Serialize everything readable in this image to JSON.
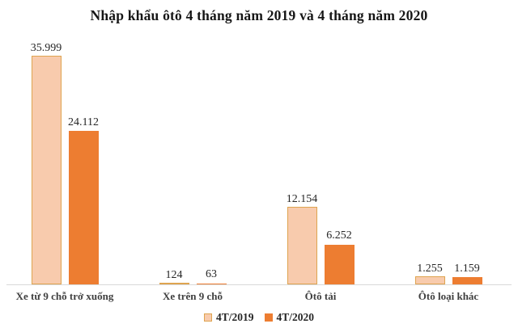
{
  "colors": {
    "series1_fill": "#F8CBAD",
    "series1_border": "#DEA450",
    "series2_fill": "#ED7D31",
    "axis_line": "#D9D9D9",
    "value_label_text": "#262626",
    "category_text": "#3F3F3F",
    "title_text": "#161616"
  },
  "chart_data": {
    "type": "bar",
    "title": "Nhập khẩu ôtô 4 tháng năm 2019 và 4 tháng năm 2020",
    "categories": [
      "Xe từ 9 chỗ trở xuống",
      "Xe trên 9 chỗ",
      "Ôtô tải",
      "Ôtô loại khác"
    ],
    "series": [
      {
        "name": "4T/2019",
        "values": [
          35999,
          124,
          12154,
          1255
        ],
        "labels": [
          "35.999",
          "124",
          "12.154",
          "1.255"
        ]
      },
      {
        "name": "4T/2020",
        "values": [
          24112,
          63,
          6252,
          1159
        ],
        "labels": [
          "24.112",
          "63",
          "6.252",
          "1.159"
        ]
      }
    ],
    "xlabel": "",
    "ylabel": "",
    "ylim": [
      0,
      36000
    ],
    "grid": false,
    "y_axis_visible": false,
    "data_labels": true,
    "legend_position": "bottom"
  }
}
